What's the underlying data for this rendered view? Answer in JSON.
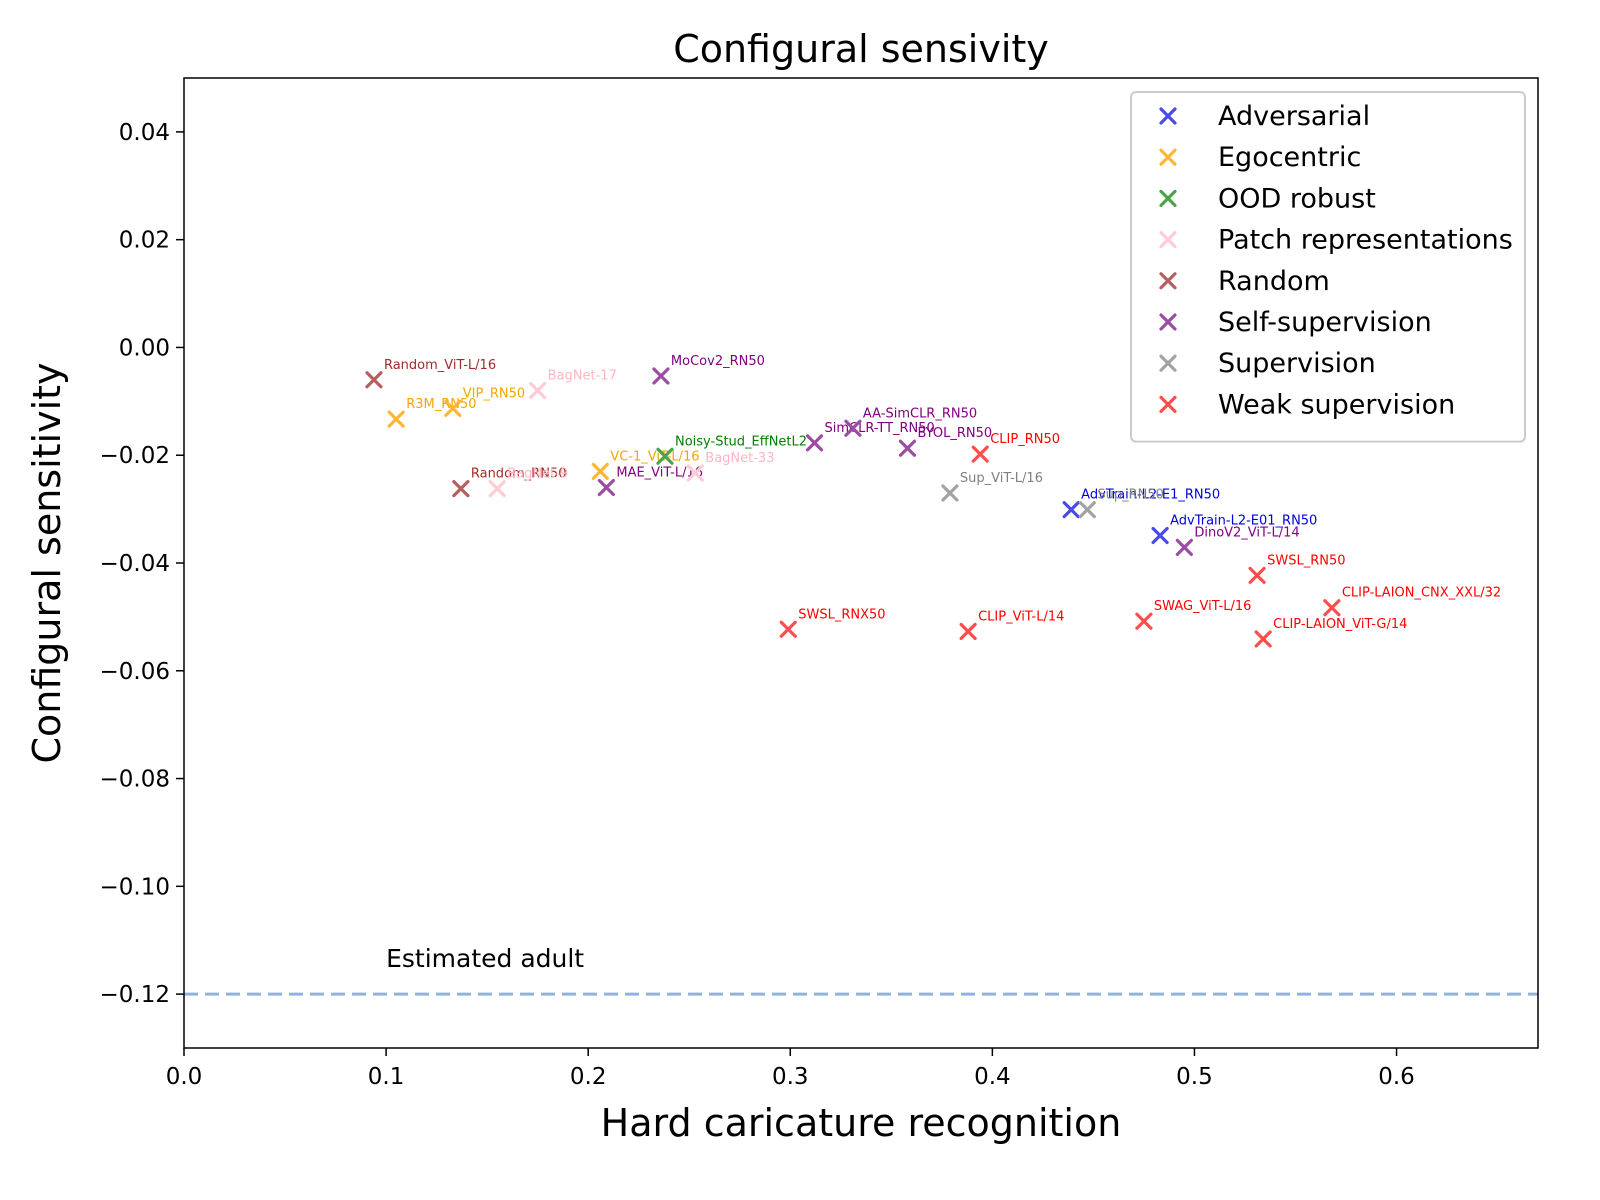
{
  "chart_data": {
    "type": "scatter",
    "title": "Configural sensivity",
    "xlabel": "Hard caricature recognition",
    "ylabel": "Configural sensitivity",
    "xlim": [
      0.0,
      0.67
    ],
    "ylim": [
      -0.13,
      0.05
    ],
    "xticks": [
      0.0,
      0.1,
      0.2,
      0.3,
      0.4,
      0.5,
      0.6
    ],
    "xtick_labels": [
      "0.0",
      "0.1",
      "0.2",
      "0.3",
      "0.4",
      "0.5",
      "0.6"
    ],
    "yticks": [
      0.04,
      0.02,
      0.0,
      -0.02,
      -0.04,
      -0.06,
      -0.08,
      -0.1,
      -0.12
    ],
    "ytick_labels": [
      "0.04",
      "0.02",
      "0.00",
      "−0.02",
      "−0.04",
      "−0.06",
      "−0.08",
      "−0.10",
      "−0.12"
    ],
    "grid": false,
    "legend_position": "top-right",
    "marker": "x",
    "reference_line": {
      "y": -0.12,
      "label": "Estimated adult",
      "color": "#8fb3db",
      "style": "dashed"
    },
    "categories": [
      {
        "name": "Adversarial",
        "marker_color": "#4a4ae8",
        "label_color": "#0000e0"
      },
      {
        "name": "Egocentric",
        "marker_color": "#ffb733",
        "label_color": "#f5a500"
      },
      {
        "name": "OOD robust",
        "marker_color": "#4ca34c",
        "label_color": "#008000"
      },
      {
        "name": "Patch representations",
        "marker_color": "#ffccd4",
        "label_color": "#ffb6c1"
      },
      {
        "name": "Random",
        "marker_color": "#b5605f",
        "label_color": "#a52a2a"
      },
      {
        "name": "Self-supervision",
        "marker_color": "#9b4ca3",
        "label_color": "#800080"
      },
      {
        "name": "Supervision",
        "marker_color": "#a3a3a3",
        "label_color": "#808080"
      },
      {
        "name": "Weak supervision",
        "marker_color": "#ff4d4d",
        "label_color": "#ff0000"
      }
    ],
    "points": [
      {
        "label": "Random_ViT-L/16",
        "x": 0.094,
        "y": -0.006,
        "category": "Random"
      },
      {
        "label": "R3M_RN50",
        "x": 0.105,
        "y": -0.0133,
        "category": "Egocentric"
      },
      {
        "label": "VIP_RN50",
        "x": 0.133,
        "y": -0.0113,
        "category": "Egocentric"
      },
      {
        "label": "BagNet-17",
        "x": 0.175,
        "y": -0.008,
        "category": "Patch representations"
      },
      {
        "label": "MoCov2_RN50",
        "x": 0.236,
        "y": -0.0053,
        "category": "Self-supervision"
      },
      {
        "label": "Random_RN50",
        "x": 0.137,
        "y": -0.0262,
        "category": "Random"
      },
      {
        "label": "BagNet-9",
        "x": 0.155,
        "y": -0.0262,
        "category": "Patch representations"
      },
      {
        "label": "VC-1_ViT-L/16",
        "x": 0.206,
        "y": -0.023,
        "category": "Egocentric"
      },
      {
        "label": "MAE_ViT-L/16",
        "x": 0.209,
        "y": -0.026,
        "category": "Self-supervision"
      },
      {
        "label": "Noisy-Stud_EffNetL2",
        "x": 0.238,
        "y": -0.0202,
        "category": "OOD robust"
      },
      {
        "label": "BagNet-33",
        "x": 0.253,
        "y": -0.0233,
        "category": "Patch representations"
      },
      {
        "label": "SimCLR-TT_RN50",
        "x": 0.312,
        "y": -0.0177,
        "category": "Self-supervision"
      },
      {
        "label": "AA-SimCLR_RN50",
        "x": 0.331,
        "y": -0.015,
        "category": "Self-supervision"
      },
      {
        "label": "BYOL_RN50",
        "x": 0.358,
        "y": -0.0187,
        "category": "Self-supervision"
      },
      {
        "label": "CLIP_RN50",
        "x": 0.394,
        "y": -0.0198,
        "category": "Weak supervision"
      },
      {
        "label": "Sup_ViT-L/16",
        "x": 0.379,
        "y": -0.027,
        "category": "Supervision"
      },
      {
        "label": "AdvTrain-L2-E1_RN50",
        "x": 0.439,
        "y": -0.0301,
        "category": "Adversarial"
      },
      {
        "label": "Sup_RN50",
        "x": 0.447,
        "y": -0.0301,
        "category": "Supervision"
      },
      {
        "label": "AdvTrain-L2-E01_RN50",
        "x": 0.483,
        "y": -0.0349,
        "category": "Adversarial"
      },
      {
        "label": "DinoV2_ViT-L/14",
        "x": 0.495,
        "y": -0.0371,
        "category": "Self-supervision"
      },
      {
        "label": "SWSL_RN50",
        "x": 0.531,
        "y": -0.0423,
        "category": "Weak supervision"
      },
      {
        "label": "CLIP-LAION_CNX_XXL/32",
        "x": 0.568,
        "y": -0.0483,
        "category": "Weak supervision"
      },
      {
        "label": "SWSL_RNX50",
        "x": 0.299,
        "y": -0.0523,
        "category": "Weak supervision"
      },
      {
        "label": "CLIP_ViT-L/14",
        "x": 0.388,
        "y": -0.0527,
        "category": "Weak supervision"
      },
      {
        "label": "SWAG_ViT-L/16",
        "x": 0.475,
        "y": -0.0508,
        "category": "Weak supervision"
      },
      {
        "label": "CLIP-LAION_ViT-G/14",
        "x": 0.534,
        "y": -0.0541,
        "category": "Weak supervision"
      }
    ]
  }
}
